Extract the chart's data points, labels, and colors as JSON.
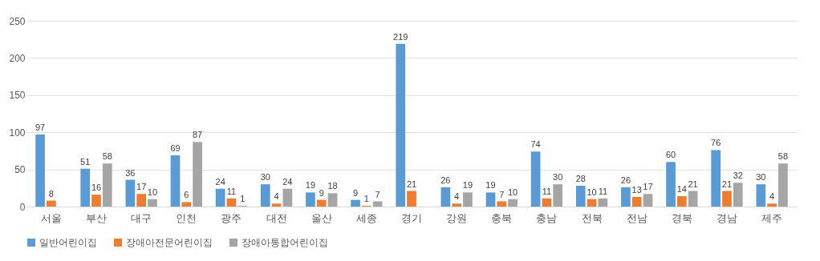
{
  "chart_data": {
    "type": "bar",
    "categories": [
      "서울",
      "부산",
      "대구",
      "인천",
      "광주",
      "대전",
      "울산",
      "세종",
      "경기",
      "강원",
      "충북",
      "충남",
      "전북",
      "전남",
      "경북",
      "경남",
      "제주"
    ],
    "series": [
      {
        "name": "일반어린이집",
        "color": "#5b9bd5",
        "values": [
          97,
          51,
          36,
          69,
          24,
          30,
          19,
          9,
          219,
          26,
          19,
          74,
          28,
          26,
          60,
          76,
          30
        ]
      },
      {
        "name": "장애아전문어린이집",
        "color": "#ed7d31",
        "values": [
          8,
          16,
          17,
          6,
          11,
          4,
          9,
          1,
          21,
          4,
          7,
          11,
          10,
          13,
          14,
          21,
          4
        ]
      },
      {
        "name": "장애아통합어린이집",
        "color": "#a5a5a5",
        "values": [
          null,
          58,
          10,
          87,
          1,
          24,
          18,
          7,
          null,
          19,
          10,
          30,
          11,
          17,
          21,
          32,
          58
        ]
      }
    ],
    "ylim": [
      0,
      250
    ],
    "yticks": [
      0,
      50,
      100,
      150,
      200,
      250
    ],
    "grid": "y",
    "legend": "bottom",
    "data_labels": true
  }
}
